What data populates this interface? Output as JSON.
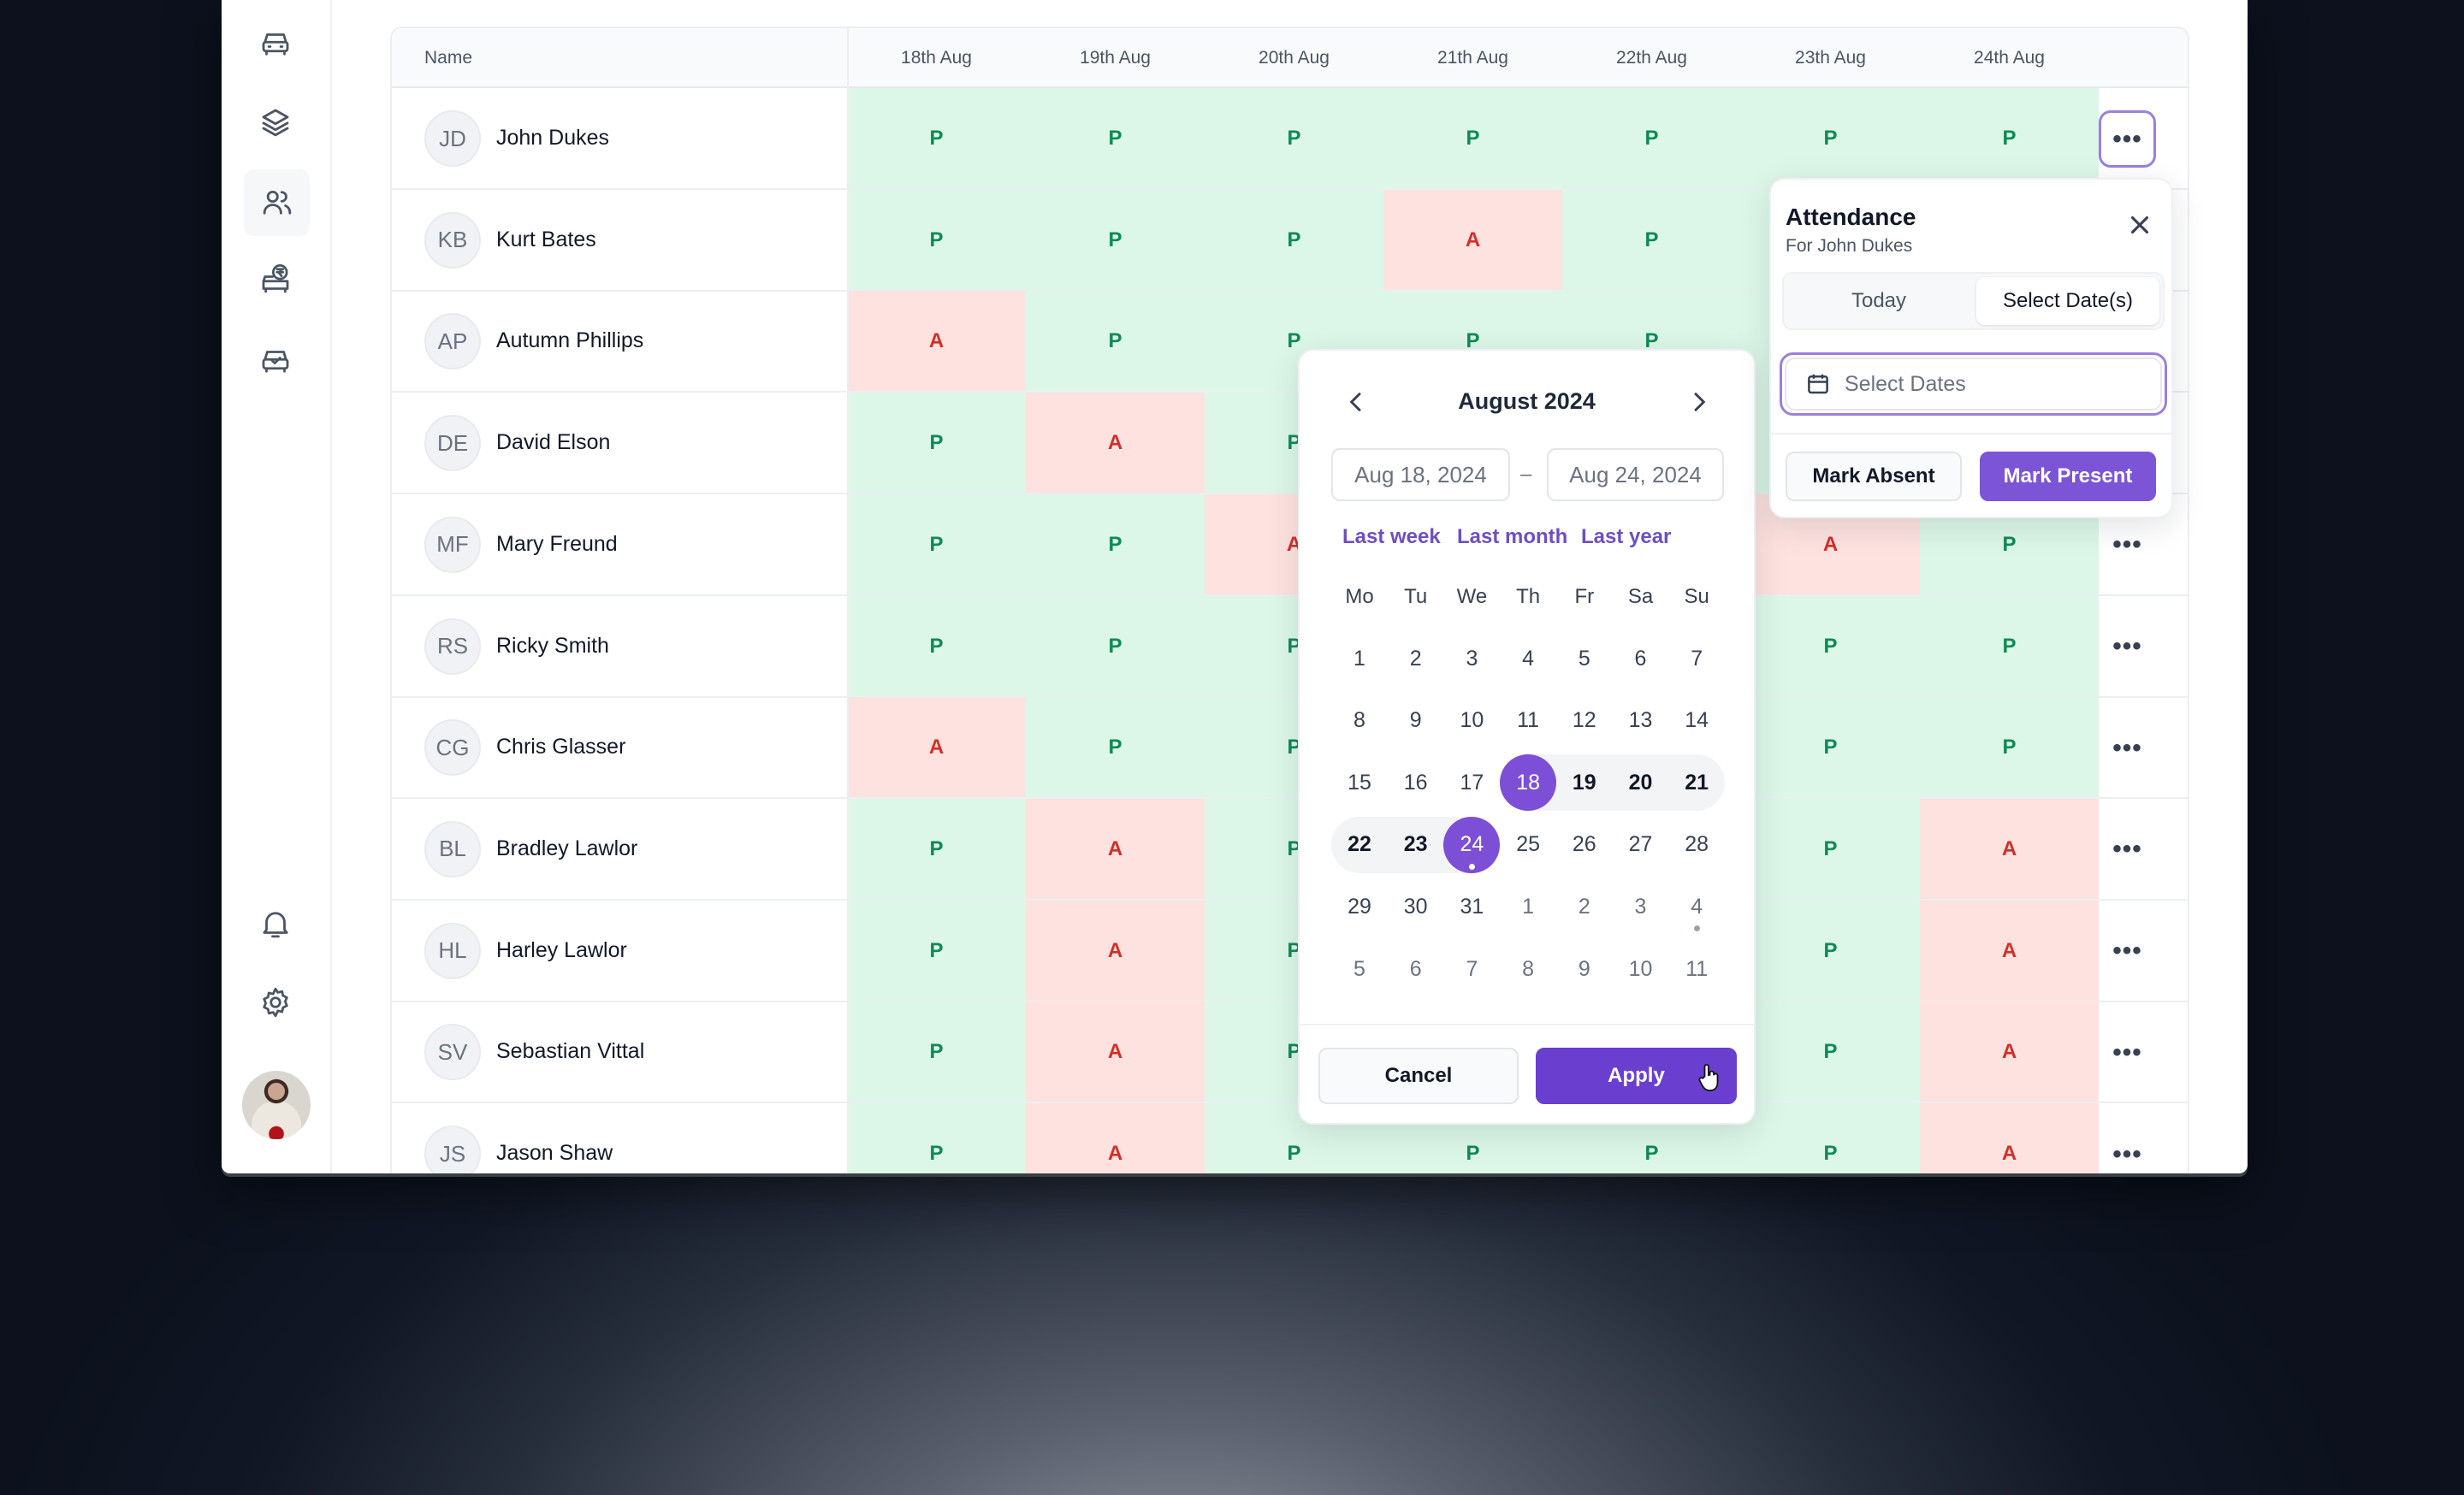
{
  "colors": {
    "accent": "#7c55d6",
    "present_bg": "#dcf7e8",
    "present_text": "#0f8a55",
    "absent_bg": "#fde2df",
    "absent_text": "#d22f28"
  },
  "sidebar": {
    "items": [
      {
        "icon": "car-icon"
      },
      {
        "icon": "layers-icon"
      },
      {
        "icon": "users-icon",
        "active": true
      },
      {
        "icon": "car-rupee-icon"
      },
      {
        "icon": "car-check-icon"
      }
    ],
    "bottom": [
      {
        "icon": "bell-icon"
      },
      {
        "icon": "gear-icon"
      }
    ],
    "avatar": "user-avatar"
  },
  "table": {
    "name_header": "Name",
    "dates": [
      "18th Aug",
      "19th Aug",
      "20th Aug",
      "21th Aug",
      "22th Aug",
      "23th Aug",
      "24th Aug"
    ],
    "more_icon": "•••",
    "rows": [
      {
        "initials": "JD",
        "name": "John Dukes",
        "att": [
          "P",
          "P",
          "P",
          "P",
          "P",
          "P",
          "P"
        ]
      },
      {
        "initials": "KB",
        "name": "Kurt Bates",
        "att": [
          "P",
          "P",
          "P",
          "A",
          "P",
          null,
          null
        ]
      },
      {
        "initials": "AP",
        "name": "Autumn Phillips",
        "att": [
          "A",
          "P",
          "P",
          "P",
          "P",
          null,
          null
        ]
      },
      {
        "initials": "DE",
        "name": "David Elson",
        "att": [
          "P",
          "A",
          "P",
          null,
          null,
          null,
          null
        ]
      },
      {
        "initials": "MF",
        "name": "Mary Freund",
        "att": [
          "P",
          "P",
          "A",
          null,
          null,
          "A",
          "P"
        ]
      },
      {
        "initials": "RS",
        "name": "Ricky Smith",
        "att": [
          "P",
          "P",
          "P",
          null,
          null,
          "P",
          "P"
        ]
      },
      {
        "initials": "CG",
        "name": "Chris Glasser",
        "att": [
          "A",
          "P",
          "P",
          null,
          null,
          "P",
          "P"
        ]
      },
      {
        "initials": "BL",
        "name": "Bradley Lawlor",
        "att": [
          "P",
          "A",
          "P",
          null,
          null,
          "P",
          "A"
        ]
      },
      {
        "initials": "HL",
        "name": "Harley Lawlor",
        "att": [
          "P",
          "A",
          "P",
          null,
          null,
          "P",
          "A"
        ]
      },
      {
        "initials": "SV",
        "name": "Sebastian Vittal",
        "att": [
          "P",
          "A",
          "P",
          null,
          null,
          "P",
          "A"
        ]
      },
      {
        "initials": "JS",
        "name": "Jason Shaw",
        "att": [
          "P",
          "A",
          "P",
          "P",
          "P",
          "P",
          "A"
        ]
      }
    ]
  },
  "attendance": {
    "title": "Attendance",
    "subtitle": "For John Dukes",
    "tabs": [
      {
        "label": "Today",
        "selected": false
      },
      {
        "label": "Select Date(s)",
        "selected": true
      }
    ],
    "date_placeholder": "Select Dates",
    "mark_absent": "Mark Absent",
    "mark_present": "Mark Present"
  },
  "calendar": {
    "title": "August 2024",
    "start_value": "Aug 18, 2024",
    "end_value": "Aug 24, 2024",
    "separator": "–",
    "quick": [
      "Last week",
      "Last month",
      "Last year"
    ],
    "weekdays": [
      "Mo",
      "Tu",
      "We",
      "Th",
      "Fr",
      "Sa",
      "Su"
    ],
    "range_start": 18,
    "range_end": 24,
    "weeks": [
      [
        {
          "d": 1
        },
        {
          "d": 2
        },
        {
          "d": 3
        },
        {
          "d": 4
        },
        {
          "d": 5
        },
        {
          "d": 6
        },
        {
          "d": 7
        }
      ],
      [
        {
          "d": 8
        },
        {
          "d": 9
        },
        {
          "d": 10
        },
        {
          "d": 11
        },
        {
          "d": 12
        },
        {
          "d": 13
        },
        {
          "d": 14
        }
      ],
      [
        {
          "d": 15
        },
        {
          "d": 16
        },
        {
          "d": 17
        },
        {
          "d": 18
        },
        {
          "d": 19
        },
        {
          "d": 20
        },
        {
          "d": 21
        }
      ],
      [
        {
          "d": 22
        },
        {
          "d": 23
        },
        {
          "d": 24,
          "dot": true
        },
        {
          "d": 25
        },
        {
          "d": 26
        },
        {
          "d": 27
        },
        {
          "d": 28
        }
      ],
      [
        {
          "d": 29
        },
        {
          "d": 30
        },
        {
          "d": 31
        },
        {
          "d": 1,
          "muted": true
        },
        {
          "d": 2,
          "muted": true
        },
        {
          "d": 3,
          "muted": true
        },
        {
          "d": 4,
          "muted": true,
          "dot": true
        }
      ],
      [
        {
          "d": 5,
          "muted": true
        },
        {
          "d": 6,
          "muted": true
        },
        {
          "d": 7,
          "muted": true
        },
        {
          "d": 8,
          "muted": true
        },
        {
          "d": 9,
          "muted": true
        },
        {
          "d": 10,
          "muted": true
        },
        {
          "d": 11,
          "muted": true
        }
      ]
    ],
    "cancel": "Cancel",
    "apply": "Apply"
  }
}
